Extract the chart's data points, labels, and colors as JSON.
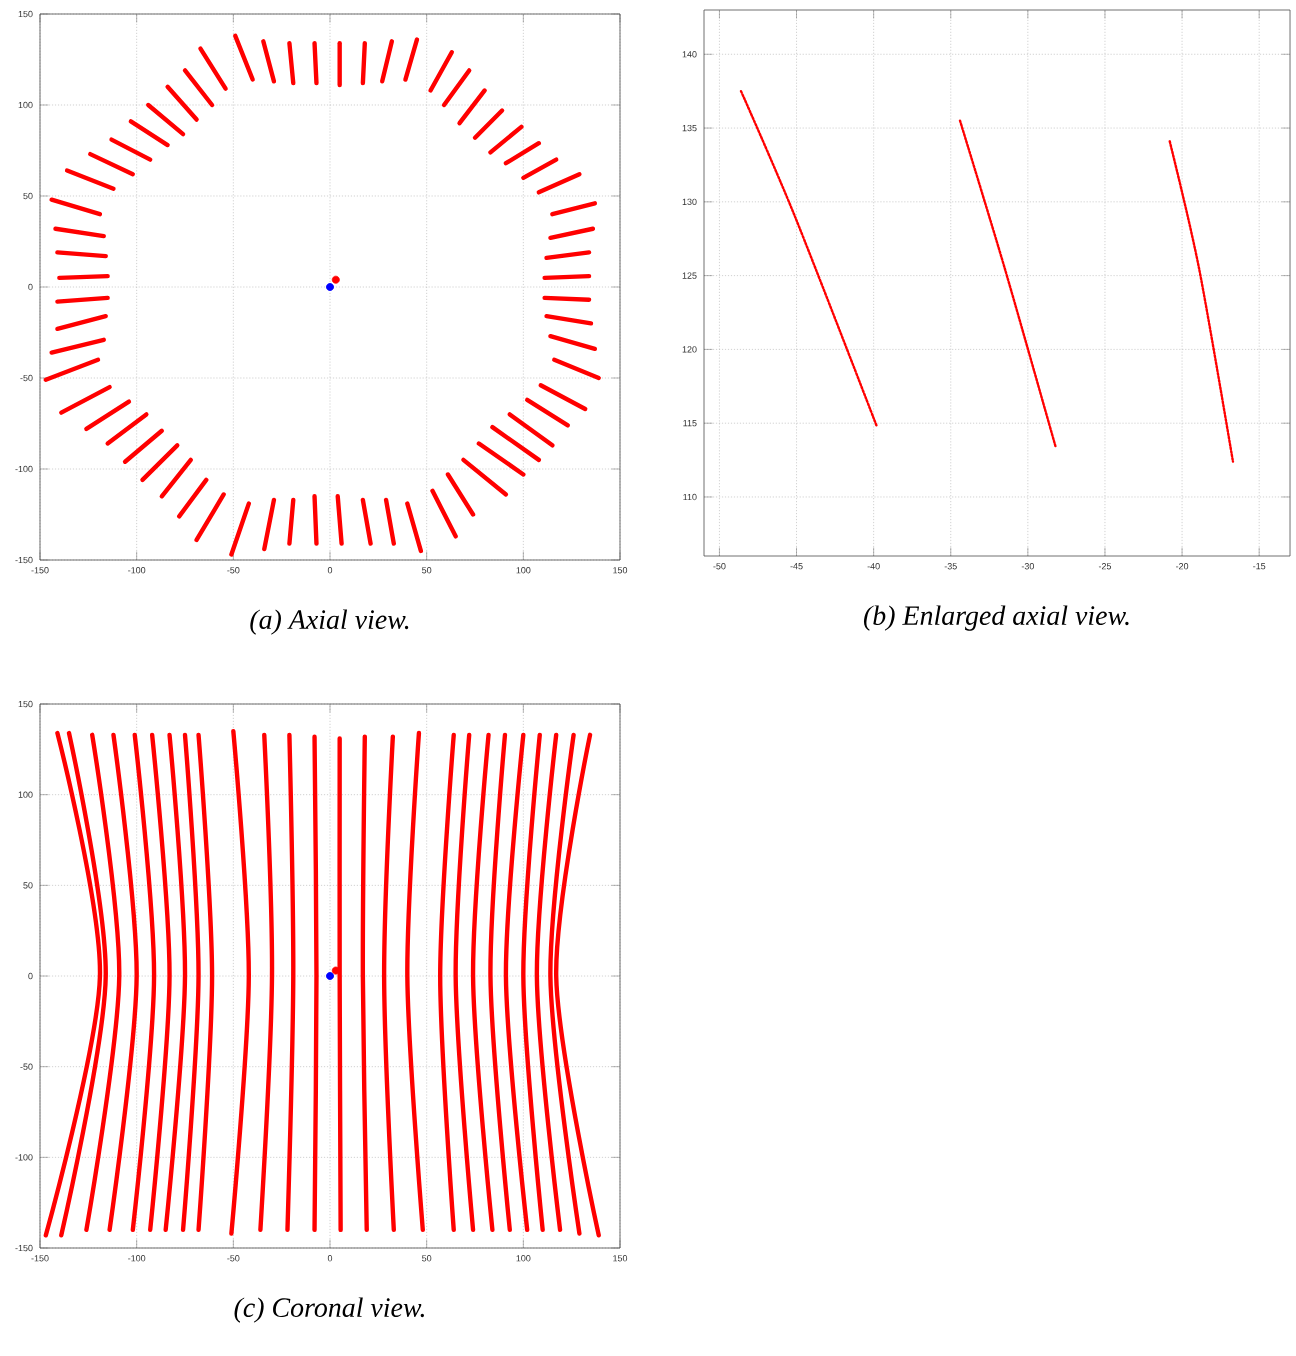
{
  "chart_data": [
    {
      "type": "line",
      "title": "(a) Axial view.",
      "xlim": [
        -150,
        150
      ],
      "ylim": [
        -150,
        150
      ],
      "xticks": [
        -150,
        -100,
        -50,
        0,
        50,
        100,
        150
      ],
      "yticks": [
        -150,
        -100,
        -50,
        0,
        50,
        100,
        150
      ],
      "grid": true,
      "line_style": "solid",
      "color": "#ff0000",
      "series": [
        {
          "x": [
            -49,
            -40
          ],
          "values": [
            138,
            114
          ]
        },
        {
          "x": [
            -34.5,
            -29
          ],
          "values": [
            135,
            113
          ]
        },
        {
          "x": [
            -21,
            -19
          ],
          "values": [
            134,
            112
          ]
        },
        {
          "x": [
            -8,
            -7
          ],
          "values": [
            134,
            112
          ]
        },
        {
          "x": [
            5,
            5
          ],
          "values": [
            134,
            111
          ]
        },
        {
          "x": [
            18,
            17
          ],
          "values": [
            134,
            112
          ]
        },
        {
          "x": [
            32,
            27
          ],
          "values": [
            135,
            113
          ]
        },
        {
          "x": [
            45,
            39
          ],
          "values": [
            136,
            114
          ]
        },
        {
          "x": [
            63,
            52
          ],
          "values": [
            129,
            108
          ]
        },
        {
          "x": [
            72,
            59
          ],
          "values": [
            119,
            100
          ]
        },
        {
          "x": [
            80,
            67
          ],
          "values": [
            108,
            90
          ]
        },
        {
          "x": [
            89,
            75
          ],
          "values": [
            97,
            82
          ]
        },
        {
          "x": [
            99,
            83
          ],
          "values": [
            88,
            74
          ]
        },
        {
          "x": [
            108,
            91
          ],
          "values": [
            79,
            68
          ]
        },
        {
          "x": [
            117,
            100
          ],
          "values": [
            70,
            60
          ]
        },
        {
          "x": [
            129,
            108
          ],
          "values": [
            62,
            52
          ]
        },
        {
          "x": [
            137,
            115
          ],
          "values": [
            46,
            40
          ]
        },
        {
          "x": [
            136,
            114
          ],
          "values": [
            32,
            27
          ]
        },
        {
          "x": [
            134,
            112
          ],
          "values": [
            19,
            16
          ]
        },
        {
          "x": [
            134,
            111
          ],
          "values": [
            6,
            5
          ]
        },
        {
          "x": [
            134,
            111
          ],
          "values": [
            -7,
            -6
          ]
        },
        {
          "x": [
            135,
            112
          ],
          "values": [
            -20,
            -16
          ]
        },
        {
          "x": [
            137,
            114
          ],
          "values": [
            -34,
            -27
          ]
        },
        {
          "x": [
            139,
            116
          ],
          "values": [
            -50,
            -40
          ]
        },
        {
          "x": [
            132,
            109
          ],
          "values": [
            -67,
            -54
          ]
        },
        {
          "x": [
            123,
            102
          ],
          "values": [
            -76,
            -62
          ]
        },
        {
          "x": [
            115,
            93
          ],
          "values": [
            -87,
            -70
          ]
        },
        {
          "x": [
            108,
            84
          ],
          "values": [
            -95,
            -77
          ]
        },
        {
          "x": [
            100,
            77
          ],
          "values": [
            -103,
            -86
          ]
        },
        {
          "x": [
            91,
            69
          ],
          "values": [
            -114,
            -95
          ]
        },
        {
          "x": [
            74,
            61
          ],
          "values": [
            -125,
            -103
          ]
        },
        {
          "x": [
            65,
            53
          ],
          "values": [
            -137,
            -112
          ]
        },
        {
          "x": [
            47,
            40
          ],
          "values": [
            -145,
            -119
          ]
        },
        {
          "x": [
            33,
            29
          ],
          "values": [
            -141,
            -117
          ]
        },
        {
          "x": [
            21,
            17
          ],
          "values": [
            -141,
            -117
          ]
        },
        {
          "x": [
            6,
            4
          ],
          "values": [
            -141,
            -115
          ]
        },
        {
          "x": [
            -7,
            -8
          ],
          "values": [
            -141,
            -115
          ]
        },
        {
          "x": [
            -21,
            -19
          ],
          "values": [
            -141,
            -117
          ]
        },
        {
          "x": [
            -34,
            -29
          ],
          "values": [
            -144,
            -117
          ]
        },
        {
          "x": [
            -51,
            -42
          ],
          "values": [
            -147,
            -119
          ]
        },
        {
          "x": [
            -69,
            -55
          ],
          "values": [
            -139,
            -114
          ]
        },
        {
          "x": [
            -78,
            -64
          ],
          "values": [
            -126,
            -106
          ]
        },
        {
          "x": [
            -87,
            -72
          ],
          "values": [
            -115,
            -95
          ]
        },
        {
          "x": [
            -97,
            -79
          ],
          "values": [
            -106,
            -87
          ]
        },
        {
          "x": [
            -106,
            -87
          ],
          "values": [
            -96,
            -79
          ]
        },
        {
          "x": [
            -115,
            -95
          ],
          "values": [
            -86,
            -70
          ]
        },
        {
          "x": [
            -126,
            -104
          ],
          "values": [
            -78,
            -63
          ]
        },
        {
          "x": [
            -139,
            -114
          ],
          "values": [
            -69,
            -55
          ]
        },
        {
          "x": [
            -147,
            -120
          ],
          "values": [
            -51,
            -40
          ]
        },
        {
          "x": [
            -144,
            -117
          ],
          "values": [
            -36,
            -29
          ]
        },
        {
          "x": [
            -141,
            -116
          ],
          "values": [
            -23,
            -16
          ]
        },
        {
          "x": [
            -141,
            -115
          ],
          "values": [
            -8,
            -6
          ]
        },
        {
          "x": [
            -140,
            -115
          ],
          "values": [
            5,
            6
          ]
        },
        {
          "x": [
            -141,
            -116
          ],
          "values": [
            19,
            17
          ]
        },
        {
          "x": [
            -142,
            -117
          ],
          "values": [
            32,
            28
          ]
        },
        {
          "x": [
            -144,
            -119
          ],
          "values": [
            48,
            40
          ]
        },
        {
          "x": [
            -136,
            -112
          ],
          "values": [
            64,
            54
          ]
        },
        {
          "x": [
            -124,
            -102
          ],
          "values": [
            73,
            62
          ]
        },
        {
          "x": [
            -113,
            -93
          ],
          "values": [
            81,
            70
          ]
        },
        {
          "x": [
            -103,
            -84
          ],
          "values": [
            91,
            78
          ]
        },
        {
          "x": [
            -94,
            -76
          ],
          "values": [
            100,
            84
          ]
        },
        {
          "x": [
            -84,
            -69
          ],
          "values": [
            110,
            92
          ]
        },
        {
          "x": [
            -75,
            -61
          ],
          "values": [
            119,
            100
          ]
        },
        {
          "x": [
            -67,
            -54
          ],
          "values": [
            131,
            109
          ]
        },
        {
          "type": "scatter",
          "color": "#0000ff",
          "x": [
            0
          ],
          "values": [
            0
          ]
        },
        {
          "type": "scatter",
          "color": "#ff0000",
          "x": [
            3
          ],
          "values": [
            4
          ]
        }
      ]
    },
    {
      "type": "line",
      "title": "(b) Enlarged axial view.",
      "xlim": [
        -51,
        -13
      ],
      "ylim": [
        106,
        143
      ],
      "xticks": [
        -50,
        -45,
        -40,
        -35,
        -30,
        -25,
        -20,
        -15
      ],
      "yticks": [
        110,
        115,
        120,
        125,
        130,
        135,
        140
      ],
      "grid": true,
      "line_style": "dotted",
      "color": "#ff0000",
      "series": [
        {
          "x": [
            -48.6,
            -45.1,
            -39.8
          ],
          "values": [
            137.5,
            129,
            114.8
          ]
        },
        {
          "x": [
            -34.4,
            -31.5,
            -28.2
          ],
          "values": [
            135.5,
            125.5,
            113.4
          ]
        },
        {
          "x": [
            -20.8,
            -18.9,
            -16.7
          ],
          "values": [
            134.1,
            125.5,
            112.4
          ]
        }
      ]
    },
    {
      "type": "line",
      "title": "(c) Coronal view.",
      "xlim": [
        -150,
        150
      ],
      "ylim": [
        -150,
        150
      ],
      "xticks": [
        -150,
        -100,
        -50,
        0,
        50,
        100,
        150
      ],
      "yticks": [
        -150,
        -100,
        -50,
        0,
        50,
        100,
        150
      ],
      "grid": true,
      "line_style": "solid",
      "color": "#ff0000",
      "series": [
        {
          "x": [
            -141,
            -119,
            -147
          ],
          "values": [
            134,
            0,
            -143
          ]
        },
        {
          "x": [
            -135,
            -116,
            -139
          ],
          "values": [
            134,
            0,
            -143
          ]
        },
        {
          "x": [
            -123,
            -109,
            -126
          ],
          "values": [
            133,
            0,
            -140
          ]
        },
        {
          "x": [
            -112,
            -100,
            -114
          ],
          "values": [
            133,
            0,
            -140
          ]
        },
        {
          "x": [
            -101,
            -91,
            -102
          ],
          "values": [
            133,
            0,
            -140
          ]
        },
        {
          "x": [
            -92,
            -83,
            -93
          ],
          "values": [
            133,
            0,
            -140
          ]
        },
        {
          "x": [
            -83,
            -75,
            -85
          ],
          "values": [
            133,
            0,
            -140
          ]
        },
        {
          "x": [
            -75,
            -68,
            -76
          ],
          "values": [
            133,
            0,
            -140
          ]
        },
        {
          "x": [
            -68,
            -61,
            -68
          ],
          "values": [
            133,
            0,
            -140
          ]
        },
        {
          "x": [
            -50,
            -42,
            -51
          ],
          "values": [
            135,
            0,
            -142
          ]
        },
        {
          "x": [
            -34,
            -30,
            -36
          ],
          "values": [
            133,
            0,
            -140
          ]
        },
        {
          "x": [
            -21,
            -19,
            -22
          ],
          "values": [
            133,
            0,
            -140
          ]
        },
        {
          "x": [
            -8,
            -7,
            -8
          ],
          "values": [
            132,
            0,
            -140
          ]
        },
        {
          "x": [
            5,
            5,
            5.5
          ],
          "values": [
            131,
            0,
            -140
          ]
        },
        {
          "x": [
            18,
            17,
            19
          ],
          "values": [
            132,
            0,
            -140
          ]
        },
        {
          "x": [
            32.5,
            28,
            33
          ],
          "values": [
            132,
            0,
            -140
          ]
        },
        {
          "x": [
            46,
            40,
            48
          ],
          "values": [
            134,
            0,
            -140
          ]
        },
        {
          "x": [
            64,
            57,
            64
          ],
          "values": [
            133,
            0,
            -140
          ]
        },
        {
          "x": [
            72,
            65,
            74
          ],
          "values": [
            133,
            0,
            -140
          ]
        },
        {
          "x": [
            82,
            74,
            84
          ],
          "values": [
            133,
            0,
            -140
          ]
        },
        {
          "x": [
            90.5,
            83,
            93
          ],
          "values": [
            133,
            0,
            -140
          ]
        },
        {
          "x": [
            100,
            91,
            102
          ],
          "values": [
            133,
            0,
            -140
          ]
        },
        {
          "x": [
            108.5,
            100,
            110
          ],
          "values": [
            133,
            0,
            -140
          ]
        },
        {
          "x": [
            117,
            107,
            119
          ],
          "values": [
            133,
            0,
            -140
          ]
        },
        {
          "x": [
            126,
            114,
            129
          ],
          "values": [
            133,
            0,
            -142
          ]
        },
        {
          "x": [
            134.5,
            117,
            139
          ],
          "values": [
            133,
            0,
            -143
          ]
        },
        {
          "type": "scatter",
          "color": "#0000ff",
          "x": [
            0
          ],
          "values": [
            0
          ]
        },
        {
          "type": "scatter",
          "color": "#ff0000",
          "x": [
            3
          ],
          "values": [
            3
          ]
        }
      ]
    }
  ]
}
